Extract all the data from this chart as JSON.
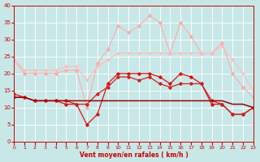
{
  "x": [
    0,
    1,
    2,
    3,
    4,
    5,
    6,
    7,
    8,
    9,
    10,
    11,
    12,
    13,
    14,
    15,
    16,
    17,
    18,
    19,
    20,
    21,
    22,
    23
  ],
  "line_rafales_max": [
    24,
    20,
    20,
    20,
    20,
    21,
    21,
    10,
    23,
    27,
    34,
    32,
    34,
    37,
    35,
    26,
    35,
    31,
    26,
    26,
    29,
    20,
    16,
    13
  ],
  "line_rafales_smooth": [
    24,
    21,
    21,
    21,
    21,
    22,
    22,
    18,
    22,
    24,
    26,
    26,
    26,
    26,
    26,
    26,
    26,
    26,
    26,
    26,
    28,
    24,
    20,
    15
  ],
  "line_moyen_max": [
    14,
    13,
    12,
    12,
    12,
    11,
    11,
    5,
    8,
    17,
    20,
    20,
    20,
    20,
    19,
    17,
    20,
    19,
    17,
    11,
    11,
    8,
    8,
    10
  ],
  "line_moyen_flat": [
    13,
    13,
    12,
    12,
    12,
    12,
    12,
    12,
    12,
    12,
    12,
    12,
    12,
    12,
    12,
    12,
    12,
    12,
    12,
    12,
    12,
    11,
    11,
    10
  ],
  "line_moyen_med": [
    13,
    13,
    12,
    12,
    12,
    12,
    11,
    11,
    14,
    16,
    19,
    19,
    18,
    19,
    17,
    16,
    17,
    17,
    17,
    12,
    11,
    8,
    8,
    10
  ],
  "bg_color": "#c8e8e8",
  "grid_color": "#ffffff",
  "xlim": [
    0,
    23
  ],
  "ylim": [
    0,
    40
  ],
  "yticks": [
    0,
    5,
    10,
    15,
    20,
    25,
    30,
    35,
    40
  ],
  "xticks": [
    0,
    1,
    2,
    3,
    4,
    5,
    6,
    7,
    8,
    9,
    10,
    11,
    12,
    13,
    14,
    15,
    16,
    17,
    18,
    19,
    20,
    21,
    22,
    23
  ],
  "xlabel": "Vent moyen/en rafales ( km/h )"
}
